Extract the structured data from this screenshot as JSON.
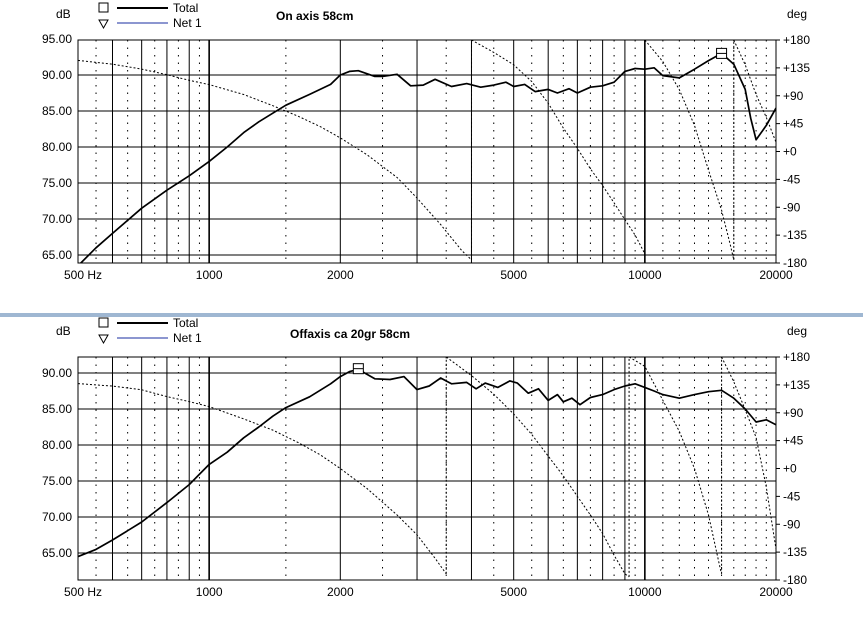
{
  "colors": {
    "frame": "#000000",
    "divider": "#9fb7d2",
    "background": "#ffffff"
  },
  "chart_data": [
    {
      "type": "line",
      "title": "On axis 58cm",
      "ylabel": "dB",
      "y2label": "deg",
      "x_scale": "log",
      "xlim": [
        500,
        20000
      ],
      "ylim": [
        63,
        95
      ],
      "y2lim": [
        -180,
        180
      ],
      "x_ticks": [
        500,
        1000,
        2000,
        5000,
        10000,
        20000
      ],
      "x_tick_labels": [
        "500 Hz",
        "1000",
        "2000",
        "5000",
        "10000",
        "20000"
      ],
      "y_ticks": [
        65,
        70,
        75,
        80,
        85,
        90,
        95
      ],
      "y_tick_labels": [
        "65.00",
        "70.00",
        "75.00",
        "80.00",
        "85.00",
        "90.00",
        "95.00"
      ],
      "y2_ticks": [
        -180,
        -135,
        -90,
        -45,
        0,
        45,
        90,
        135,
        180
      ],
      "y2_tick_labels": [
        "-180",
        "-135",
        "-90",
        "-45",
        "+0",
        "+45",
        "+90",
        "+135",
        "+180"
      ],
      "grid": true,
      "legend": {
        "placement": "top-left",
        "entries": [
          {
            "name": "Total",
            "marker": "square",
            "line": "thick-black"
          },
          {
            "name": "Net 1",
            "marker": "triangle-down",
            "line": "thin-blue"
          }
        ]
      },
      "series": [
        {
          "name": "Total",
          "axis": "left",
          "style": "solid-thick",
          "marker_at": [
            15000,
            93.0
          ],
          "points": [
            [
              500,
              63.5
            ],
            [
              550,
              66
            ],
            [
              600,
              68
            ],
            [
              700,
              71.5
            ],
            [
              800,
              74
            ],
            [
              900,
              76
            ],
            [
              1000,
              78
            ],
            [
              1100,
              80
            ],
            [
              1200,
              82
            ],
            [
              1300,
              83.5
            ],
            [
              1400,
              84.7
            ],
            [
              1500,
              85.8
            ],
            [
              1700,
              87.3
            ],
            [
              1900,
              88.7
            ],
            [
              2000,
              90
            ],
            [
              2100,
              90.5
            ],
            [
              2200,
              90.6
            ],
            [
              2400,
              89.8
            ],
            [
              2500,
              89.8
            ],
            [
              2700,
              90.1
            ],
            [
              2900,
              88.5
            ],
            [
              3100,
              88.6
            ],
            [
              3300,
              89.4
            ],
            [
              3600,
              88.4
            ],
            [
              3900,
              88.8
            ],
            [
              4200,
              88.3
            ],
            [
              4500,
              88.6
            ],
            [
              4800,
              89.0
            ],
            [
              5000,
              88.4
            ],
            [
              5300,
              88.7
            ],
            [
              5600,
              87.7
            ],
            [
              6000,
              88.0
            ],
            [
              6300,
              87.5
            ],
            [
              6700,
              88.1
            ],
            [
              7000,
              87.5
            ],
            [
              7500,
              88.3
            ],
            [
              8000,
              88.5
            ],
            [
              8500,
              89.0
            ],
            [
              9000,
              90.5
            ],
            [
              9500,
              90.9
            ],
            [
              10000,
              90.8
            ],
            [
              10500,
              91.0
            ],
            [
              11000,
              89.9
            ],
            [
              12000,
              89.6
            ],
            [
              13000,
              90.8
            ],
            [
              14000,
              92.0
            ],
            [
              15000,
              93.0
            ],
            [
              16000,
              91.5
            ],
            [
              17000,
              88
            ],
            [
              17500,
              84
            ],
            [
              18000,
              81
            ],
            [
              19000,
              83
            ],
            [
              20000,
              85.4
            ]
          ]
        },
        {
          "name": "Net 1",
          "axis": "right",
          "style": "dotted",
          "points": [
            [
              500,
              147
            ],
            [
              600,
              141
            ],
            [
              700,
              133
            ],
            [
              800,
              124
            ],
            [
              900,
              115
            ],
            [
              1000,
              108
            ],
            [
              1200,
              92
            ],
            [
              1400,
              74
            ],
            [
              1600,
              57
            ],
            [
              1800,
              40
            ],
            [
              2000,
              22
            ],
            [
              2300,
              -5
            ],
            [
              2700,
              -42
            ],
            [
              3000,
              -75
            ],
            [
              3400,
              -118
            ],
            [
              3800,
              -160
            ],
            [
              4000,
              -175
            ],
            [
              4001,
              180
            ],
            [
              4500,
              160
            ],
            [
              5000,
              140
            ],
            [
              5500,
              113
            ],
            [
              6000,
              78
            ],
            [
              6500,
              38
            ],
            [
              7000,
              5
            ],
            [
              7500,
              -28
            ],
            [
              8000,
              -55
            ],
            [
              8500,
              -83
            ],
            [
              9000,
              -110
            ],
            [
              9500,
              -135
            ],
            [
              10000,
              -165
            ],
            [
              10001,
              180
            ],
            [
              11000,
              145
            ],
            [
              12000,
              100
            ],
            [
              13000,
              42
            ],
            [
              14000,
              -30
            ],
            [
              15000,
              -95
            ],
            [
              15700,
              -150
            ],
            [
              16000,
              -175
            ],
            [
              16001,
              180
            ],
            [
              17000,
              140
            ],
            [
              18000,
              92
            ],
            [
              19000,
              55
            ],
            [
              20000,
              15
            ]
          ]
        }
      ]
    },
    {
      "type": "line",
      "title": "Offaxis ca 20gr 58cm",
      "ylabel": "dB",
      "y2label": "deg",
      "x_scale": "log",
      "xlim": [
        500,
        20000
      ],
      "ylim": [
        63,
        92.5
      ],
      "y2lim": [
        -180,
        180
      ],
      "x_ticks": [
        500,
        1000,
        2000,
        5000,
        10000,
        20000
      ],
      "x_tick_labels": [
        "500 Hz",
        "1000",
        "2000",
        "5000",
        "10000",
        "20000"
      ],
      "y_ticks": [
        65,
        70,
        75,
        80,
        85,
        90
      ],
      "y_tick_labels": [
        "65.00",
        "70.00",
        "75.00",
        "80.00",
        "85.00",
        "90.00"
      ],
      "y2_ticks": [
        -180,
        -135,
        -90,
        -45,
        0,
        45,
        90,
        135,
        180
      ],
      "y2_tick_labels": [
        "-180",
        "-135",
        "-90",
        "-45",
        "+0",
        "+45",
        "+90",
        "+135",
        "+180"
      ],
      "grid": true,
      "legend": {
        "placement": "top-left",
        "entries": [
          {
            "name": "Total",
            "marker": "square",
            "line": "thick-black"
          },
          {
            "name": "Net 1",
            "marker": "triangle-down",
            "line": "thin-blue"
          }
        ]
      },
      "series": [
        {
          "name": "Total",
          "axis": "left",
          "style": "solid-thick",
          "marker_at": [
            2200,
            90.6
          ],
          "points": [
            [
              500,
              64.5
            ],
            [
              550,
              65.5
            ],
            [
              600,
              66.8
            ],
            [
              700,
              69.3
            ],
            [
              800,
              72
            ],
            [
              900,
              74.5
            ],
            [
              1000,
              77.3
            ],
            [
              1100,
              79
            ],
            [
              1200,
              81
            ],
            [
              1300,
              82.5
            ],
            [
              1400,
              84.0
            ],
            [
              1500,
              85.2
            ],
            [
              1700,
              86.7
            ],
            [
              1900,
              88.5
            ],
            [
              2000,
              89.5
            ],
            [
              2100,
              90.2
            ],
            [
              2200,
              90.5
            ],
            [
              2400,
              89.2
            ],
            [
              2600,
              89.1
            ],
            [
              2800,
              89.5
            ],
            [
              3000,
              87.7
            ],
            [
              3200,
              88.2
            ],
            [
              3400,
              89.3
            ],
            [
              3600,
              88.5
            ],
            [
              3900,
              88.7
            ],
            [
              4100,
              87.8
            ],
            [
              4300,
              88.6
            ],
            [
              4600,
              88.0
            ],
            [
              4900,
              88.9
            ],
            [
              5100,
              88.6
            ],
            [
              5400,
              87.2
            ],
            [
              5700,
              87.8
            ],
            [
              6000,
              86.2
            ],
            [
              6300,
              87.0
            ],
            [
              6500,
              86.0
            ],
            [
              6800,
              86.5
            ],
            [
              7100,
              85.6
            ],
            [
              7500,
              86.6
            ],
            [
              8000,
              87.0
            ],
            [
              8500,
              87.7
            ],
            [
              9000,
              88.2
            ],
            [
              9500,
              88.5
            ],
            [
              10000,
              88.0
            ],
            [
              10500,
              87.5
            ],
            [
              11000,
              87.0
            ],
            [
              12000,
              86.5
            ],
            [
              13000,
              87.0
            ],
            [
              14000,
              87.4
            ],
            [
              15000,
              87.6
            ],
            [
              16000,
              86.5
            ],
            [
              17000,
              85.0
            ],
            [
              18000,
              83.2
            ],
            [
              19000,
              83.5
            ],
            [
              20000,
              82.8
            ]
          ]
        },
        {
          "name": "Net 1",
          "axis": "right",
          "style": "dotted",
          "points": [
            [
              500,
              137
            ],
            [
              600,
              133
            ],
            [
              700,
              127
            ],
            [
              800,
              116
            ],
            [
              900,
              108
            ],
            [
              1000,
              100
            ],
            [
              1200,
              80
            ],
            [
              1400,
              62
            ],
            [
              1600,
              42
            ],
            [
              1800,
              22
            ],
            [
              2000,
              0
            ],
            [
              2300,
              -32
            ],
            [
              2700,
              -75
            ],
            [
              3000,
              -107
            ],
            [
              3300,
              -145
            ],
            [
              3500,
              -170
            ],
            [
              3501,
              180
            ],
            [
              4000,
              150
            ],
            [
              4500,
              120
            ],
            [
              5000,
              88
            ],
            [
              5500,
              55
            ],
            [
              6000,
              20
            ],
            [
              6500,
              -12
            ],
            [
              7000,
              -45
            ],
            [
              7500,
              -75
            ],
            [
              8000,
              -105
            ],
            [
              8500,
              -140
            ],
            [
              9000,
              -170
            ],
            [
              9200,
              -175
            ],
            [
              9201,
              180
            ],
            [
              10000,
              165
            ],
            [
              11000,
              110
            ],
            [
              12000,
              60
            ],
            [
              13000,
              0
            ],
            [
              14000,
              -75
            ],
            [
              14900,
              -162
            ],
            [
              15000,
              -170
            ],
            [
              15001,
              180
            ],
            [
              16000,
              140
            ],
            [
              17000,
              95
            ],
            [
              18000,
              50
            ],
            [
              19000,
              -30
            ],
            [
              20000,
              -130
            ]
          ]
        }
      ]
    }
  ]
}
